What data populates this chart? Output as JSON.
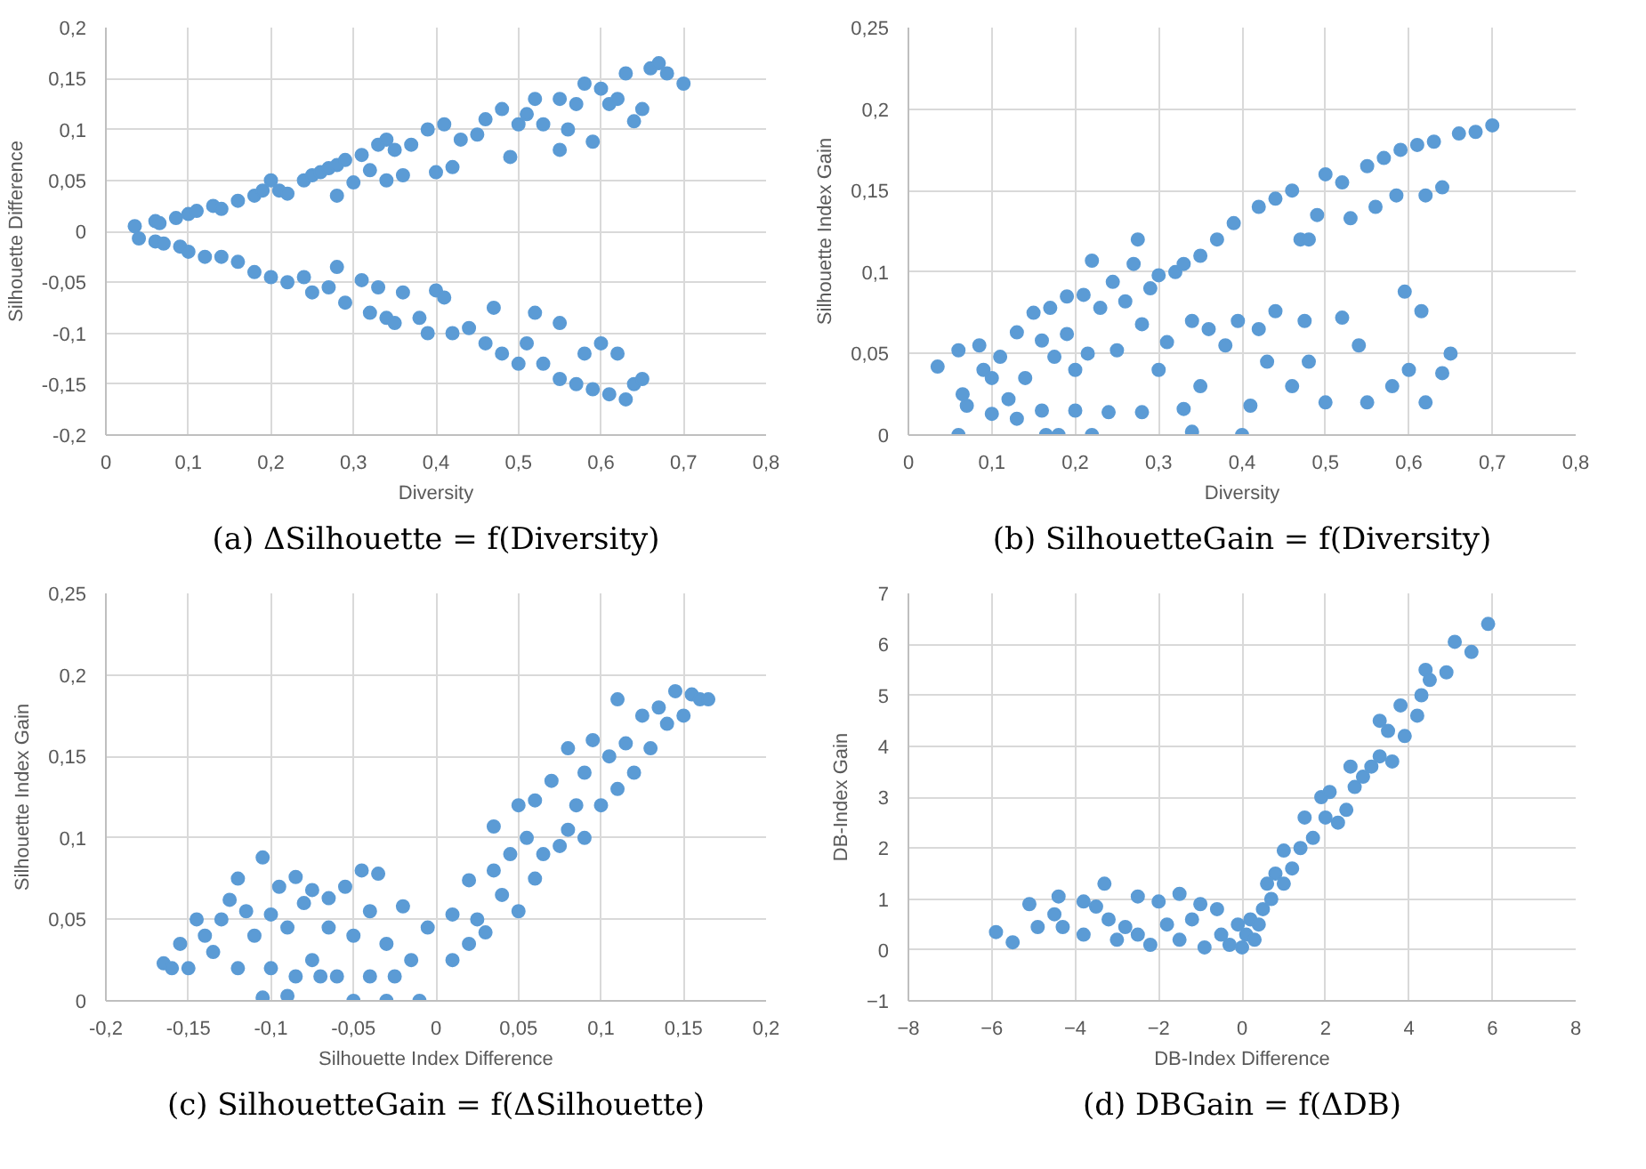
{
  "chart_data": [
    {
      "type": "scatter",
      "title": "(a) ΔSilhouette = f(Diversity)",
      "xlabel": "Diversity",
      "ylabel": "Silhouette Difference",
      "color": "#5b9bd5",
      "marker": "circle",
      "grid": true,
      "xlim": [
        0,
        0.8
      ],
      "ylim": [
        -0.2,
        0.2
      ],
      "xticks": [
        0,
        {
          "value": 0.1,
          "label": "0,1"
        },
        {
          "value": 0.2,
          "label": "0,2"
        },
        {
          "value": 0.3,
          "label": "0,3"
        },
        {
          "value": 0.4,
          "label": "0,4"
        },
        {
          "value": 0.5,
          "label": "0,5"
        },
        {
          "value": 0.6,
          "label": "0,6"
        },
        {
          "value": 0.7,
          "label": "0,7"
        },
        {
          "value": 0.8,
          "label": "0,8"
        }
      ],
      "yticks": [
        {
          "value": -0.2,
          "label": "-0,2"
        },
        {
          "value": -0.15,
          "label": "-0,15"
        },
        {
          "value": -0.1,
          "label": "-0,1"
        },
        {
          "value": -0.05,
          "label": "-0,05"
        },
        0,
        {
          "value": 0.05,
          "label": "0,05"
        },
        {
          "value": 0.1,
          "label": "0,1"
        },
        {
          "value": 0.15,
          "label": "0,15"
        },
        {
          "value": 0.2,
          "label": "0,2"
        }
      ],
      "x": [
        0.035,
        0.06,
        0.065,
        0.085,
        0.1,
        0.11,
        0.13,
        0.14,
        0.16,
        0.18,
        0.19,
        0.2,
        0.21,
        0.22,
        0.24,
        0.25,
        0.26,
        0.27,
        0.28,
        0.28,
        0.29,
        0.3,
        0.31,
        0.32,
        0.33,
        0.34,
        0.34,
        0.35,
        0.36,
        0.37,
        0.39,
        0.4,
        0.41,
        0.42,
        0.43,
        0.45,
        0.46,
        0.48,
        0.49,
        0.5,
        0.51,
        0.52,
        0.53,
        0.55,
        0.55,
        0.56,
        0.57,
        0.58,
        0.59,
        0.6,
        0.61,
        0.62,
        0.63,
        0.64,
        0.65,
        0.66,
        0.67,
        0.68,
        0.7,
        0.04,
        0.06,
        0.07,
        0.09,
        0.1,
        0.12,
        0.14,
        0.16,
        0.18,
        0.2,
        0.22,
        0.24,
        0.25,
        0.27,
        0.28,
        0.29,
        0.31,
        0.32,
        0.33,
        0.34,
        0.35,
        0.36,
        0.38,
        0.39,
        0.4,
        0.41,
        0.42,
        0.44,
        0.46,
        0.47,
        0.48,
        0.5,
        0.51,
        0.52,
        0.53,
        0.55,
        0.55,
        0.57,
        0.58,
        0.59,
        0.6,
        0.61,
        0.62,
        0.63,
        0.64,
        0.65
      ],
      "values": [
        0.005,
        0.01,
        0.008,
        0.013,
        0.017,
        0.02,
        0.025,
        0.022,
        0.03,
        0.035,
        0.04,
        0.05,
        0.04,
        0.037,
        0.05,
        0.055,
        0.058,
        0.062,
        0.035,
        0.065,
        0.07,
        0.048,
        0.075,
        0.06,
        0.085,
        0.09,
        0.05,
        0.08,
        0.055,
        0.085,
        0.1,
        0.058,
        0.105,
        0.063,
        0.09,
        0.095,
        0.11,
        0.12,
        0.073,
        0.105,
        0.115,
        0.13,
        0.105,
        0.08,
        0.13,
        0.1,
        0.125,
        0.145,
        0.088,
        0.14,
        0.125,
        0.13,
        0.155,
        0.108,
        0.12,
        0.16,
        0.165,
        0.155,
        0.145,
        -0.007,
        -0.01,
        -0.012,
        -0.015,
        -0.02,
        -0.025,
        -0.025,
        -0.03,
        -0.04,
        -0.045,
        -0.05,
        -0.045,
        -0.06,
        -0.055,
        -0.035,
        -0.07,
        -0.048,
        -0.08,
        -0.055,
        -0.085,
        -0.09,
        -0.06,
        -0.085,
        -0.1,
        -0.058,
        -0.065,
        -0.1,
        -0.095,
        -0.11,
        -0.075,
        -0.12,
        -0.13,
        -0.11,
        -0.08,
        -0.13,
        -0.09,
        -0.145,
        -0.15,
        -0.12,
        -0.155,
        -0.11,
        -0.16,
        -0.12,
        -0.165,
        -0.15,
        -0.145
      ]
    },
    {
      "type": "scatter",
      "title": "(b) SilhouetteGain = f(Diversity)",
      "xlabel": "Diversity",
      "ylabel": "Silhouette Index Gain",
      "color": "#5b9bd5",
      "marker": "circle",
      "grid": true,
      "xlim": [
        0,
        0.8
      ],
      "ylim": [
        0,
        0.25
      ],
      "xticks": [
        0,
        {
          "value": 0.1,
          "label": "0,1"
        },
        {
          "value": 0.2,
          "label": "0,2"
        },
        {
          "value": 0.3,
          "label": "0,3"
        },
        {
          "value": 0.4,
          "label": "0,4"
        },
        {
          "value": 0.5,
          "label": "0,5"
        },
        {
          "value": 0.6,
          "label": "0,6"
        },
        {
          "value": 0.7,
          "label": "0,7"
        },
        {
          "value": 0.8,
          "label": "0,8"
        }
      ],
      "yticks": [
        0,
        {
          "value": 0.05,
          "label": "0,05"
        },
        {
          "value": 0.1,
          "label": "0,1"
        },
        {
          "value": 0.15,
          "label": "0,15"
        },
        {
          "value": 0.2,
          "label": "0,2"
        },
        {
          "value": 0.25,
          "label": "0,25"
        }
      ],
      "x": [
        0.035,
        0.06,
        0.06,
        0.065,
        0.07,
        0.085,
        0.09,
        0.1,
        0.1,
        0.11,
        0.12,
        0.13,
        0.13,
        0.14,
        0.15,
        0.16,
        0.16,
        0.165,
        0.17,
        0.175,
        0.18,
        0.19,
        0.19,
        0.2,
        0.2,
        0.21,
        0.215,
        0.22,
        0.22,
        0.23,
        0.24,
        0.245,
        0.25,
        0.26,
        0.27,
        0.275,
        0.28,
        0.28,
        0.29,
        0.3,
        0.3,
        0.31,
        0.32,
        0.33,
        0.33,
        0.34,
        0.34,
        0.35,
        0.35,
        0.36,
        0.37,
        0.38,
        0.39,
        0.395,
        0.4,
        0.41,
        0.42,
        0.42,
        0.43,
        0.44,
        0.44,
        0.46,
        0.46,
        0.47,
        0.475,
        0.48,
        0.48,
        0.49,
        0.5,
        0.5,
        0.52,
        0.52,
        0.53,
        0.54,
        0.55,
        0.55,
        0.56,
        0.57,
        0.58,
        0.585,
        0.59,
        0.595,
        0.6,
        0.61,
        0.615,
        0.62,
        0.62,
        0.63,
        0.64,
        0.64,
        0.65,
        0.66,
        0.68,
        0.7
      ],
      "values": [
        0.042,
        0.052,
        0.0,
        0.025,
        0.018,
        0.055,
        0.04,
        0.035,
        0.013,
        0.048,
        0.022,
        0.063,
        0.01,
        0.035,
        0.075,
        0.058,
        0.015,
        0.0,
        0.078,
        0.048,
        0.0,
        0.085,
        0.062,
        0.04,
        0.015,
        0.086,
        0.05,
        0.0,
        0.107,
        0.078,
        0.014,
        0.094,
        0.052,
        0.082,
        0.105,
        0.12,
        0.068,
        0.014,
        0.09,
        0.098,
        0.04,
        0.057,
        0.1,
        0.016,
        0.105,
        0.002,
        0.07,
        0.11,
        0.03,
        0.065,
        0.12,
        0.055,
        0.13,
        0.07,
        0.0,
        0.018,
        0.14,
        0.065,
        0.045,
        0.145,
        0.076,
        0.15,
        0.03,
        0.12,
        0.07,
        0.045,
        0.12,
        0.135,
        0.16,
        0.02,
        0.155,
        0.072,
        0.133,
        0.055,
        0.165,
        0.02,
        0.14,
        0.17,
        0.03,
        0.147,
        0.175,
        0.088,
        0.04,
        0.178,
        0.076,
        0.147,
        0.02,
        0.18,
        0.152,
        0.038,
        0.05,
        0.185,
        0.186,
        0.19
      ]
    },
    {
      "type": "scatter",
      "title": "(c) SilhouetteGain = f(ΔSilhouette)",
      "xlabel": "Silhouette Index Difference",
      "ylabel": "Silhouette Index Gain",
      "color": "#5b9bd5",
      "marker": "circle",
      "grid": true,
      "xlim": [
        -0.2,
        0.2
      ],
      "ylim": [
        0,
        0.25
      ],
      "xticks": [
        {
          "value": -0.2,
          "label": "-0,2"
        },
        {
          "value": -0.15,
          "label": "-0,15"
        },
        {
          "value": -0.1,
          "label": "-0,1"
        },
        {
          "value": -0.05,
          "label": "-0,05"
        },
        0,
        {
          "value": 0.05,
          "label": "0,05"
        },
        {
          "value": 0.1,
          "label": "0,1"
        },
        {
          "value": 0.15,
          "label": "0,15"
        },
        {
          "value": 0.2,
          "label": "0,2"
        }
      ],
      "yticks": [
        0,
        {
          "value": 0.05,
          "label": "0,05"
        },
        {
          "value": 0.1,
          "label": "0,1"
        },
        {
          "value": 0.15,
          "label": "0,15"
        },
        {
          "value": 0.2,
          "label": "0,2"
        },
        {
          "value": 0.25,
          "label": "0,25"
        }
      ],
      "x": [
        -0.165,
        -0.16,
        -0.155,
        -0.15,
        -0.145,
        -0.14,
        -0.135,
        -0.13,
        -0.125,
        -0.12,
        -0.12,
        -0.115,
        -0.11,
        -0.105,
        -0.105,
        -0.1,
        -0.1,
        -0.095,
        -0.09,
        -0.09,
        -0.085,
        -0.085,
        -0.08,
        -0.075,
        -0.075,
        -0.07,
        -0.065,
        -0.065,
        -0.06,
        -0.055,
        -0.05,
        -0.05,
        -0.045,
        -0.04,
        -0.04,
        -0.035,
        -0.03,
        -0.03,
        -0.025,
        -0.02,
        -0.015,
        -0.01,
        -0.005,
        0.01,
        0.01,
        0.02,
        0.02,
        0.025,
        0.03,
        0.035,
        0.035,
        0.04,
        0.045,
        0.05,
        0.05,
        0.055,
        0.06,
        0.06,
        0.065,
        0.07,
        0.075,
        0.08,
        0.08,
        0.085,
        0.09,
        0.09,
        0.095,
        0.1,
        0.105,
        0.11,
        0.11,
        0.115,
        0.12,
        0.125,
        0.13,
        0.135,
        0.14,
        0.145,
        0.15,
        0.155,
        0.16,
        0.165
      ],
      "values": [
        0.023,
        0.02,
        0.035,
        0.02,
        0.05,
        0.04,
        0.03,
        0.05,
        0.062,
        0.075,
        0.02,
        0.055,
        0.04,
        0.088,
        0.002,
        0.053,
        0.02,
        0.07,
        0.045,
        0.003,
        0.076,
        0.015,
        0.06,
        0.068,
        0.025,
        0.015,
        0.045,
        0.063,
        0.015,
        0.07,
        0.0,
        0.04,
        0.08,
        0.015,
        0.055,
        0.078,
        0.0,
        0.035,
        0.015,
        0.058,
        0.025,
        0.0,
        0.045,
        0.053,
        0.025,
        0.074,
        0.035,
        0.05,
        0.042,
        0.08,
        0.107,
        0.065,
        0.09,
        0.12,
        0.055,
        0.1,
        0.075,
        0.123,
        0.09,
        0.135,
        0.095,
        0.155,
        0.105,
        0.12,
        0.14,
        0.1,
        0.16,
        0.12,
        0.15,
        0.185,
        0.13,
        0.158,
        0.14,
        0.175,
        0.155,
        0.18,
        0.17,
        0.19,
        0.175,
        0.188,
        0.185,
        0.185
      ]
    },
    {
      "type": "scatter",
      "title": "(d) DBGain = f(ΔDB)",
      "xlabel": "DB-Index Difference",
      "ylabel": "DB-Index Gain",
      "color": "#5b9bd5",
      "marker": "circle",
      "grid": true,
      "xlim": [
        -8,
        8
      ],
      "ylim": [
        -1,
        7
      ],
      "xticks": [
        -8,
        -6,
        -4,
        -2,
        0,
        2,
        4,
        6,
        8
      ],
      "yticks": [
        -1,
        0,
        1,
        2,
        3,
        4,
        5,
        6,
        7
      ],
      "x": [
        -5.9,
        -5.5,
        -5.1,
        -4.9,
        -4.5,
        -4.4,
        -4.3,
        -3.8,
        -3.8,
        -3.5,
        -3.3,
        -3.2,
        -3.0,
        -2.8,
        -2.5,
        -2.5,
        -2.2,
        -2.0,
        -1.8,
        -1.5,
        -1.5,
        -1.2,
        -1.0,
        -0.9,
        -0.6,
        -0.5,
        -0.3,
        -0.1,
        0.0,
        0.1,
        0.2,
        0.3,
        0.4,
        0.5,
        0.6,
        0.7,
        0.8,
        1.0,
        1.0,
        1.2,
        1.4,
        1.5,
        1.7,
        1.9,
        2.0,
        2.1,
        2.3,
        2.5,
        2.6,
        2.7,
        2.9,
        3.1,
        3.3,
        3.3,
        3.5,
        3.6,
        3.8,
        3.9,
        4.2,
        4.3,
        4.4,
        4.5,
        4.9,
        5.1,
        5.5,
        5.9
      ],
      "values": [
        0.35,
        0.15,
        0.9,
        0.45,
        0.7,
        1.05,
        0.45,
        0.95,
        0.3,
        0.85,
        1.3,
        0.6,
        0.2,
        0.45,
        1.05,
        0.3,
        0.1,
        0.95,
        0.5,
        1.1,
        0.2,
        0.6,
        0.9,
        0.05,
        0.8,
        0.3,
        0.1,
        0.5,
        0.05,
        0.3,
        0.6,
        0.2,
        0.5,
        0.8,
        1.3,
        1.0,
        1.5,
        1.95,
        1.3,
        1.6,
        2.0,
        2.6,
        2.2,
        3.0,
        2.6,
        3.1,
        2.5,
        2.75,
        3.6,
        3.2,
        3.4,
        3.6,
        4.5,
        3.8,
        4.3,
        3.7,
        4.8,
        4.2,
        4.6,
        5.0,
        5.5,
        5.3,
        5.45,
        6.05,
        5.85,
        6.4
      ]
    }
  ]
}
